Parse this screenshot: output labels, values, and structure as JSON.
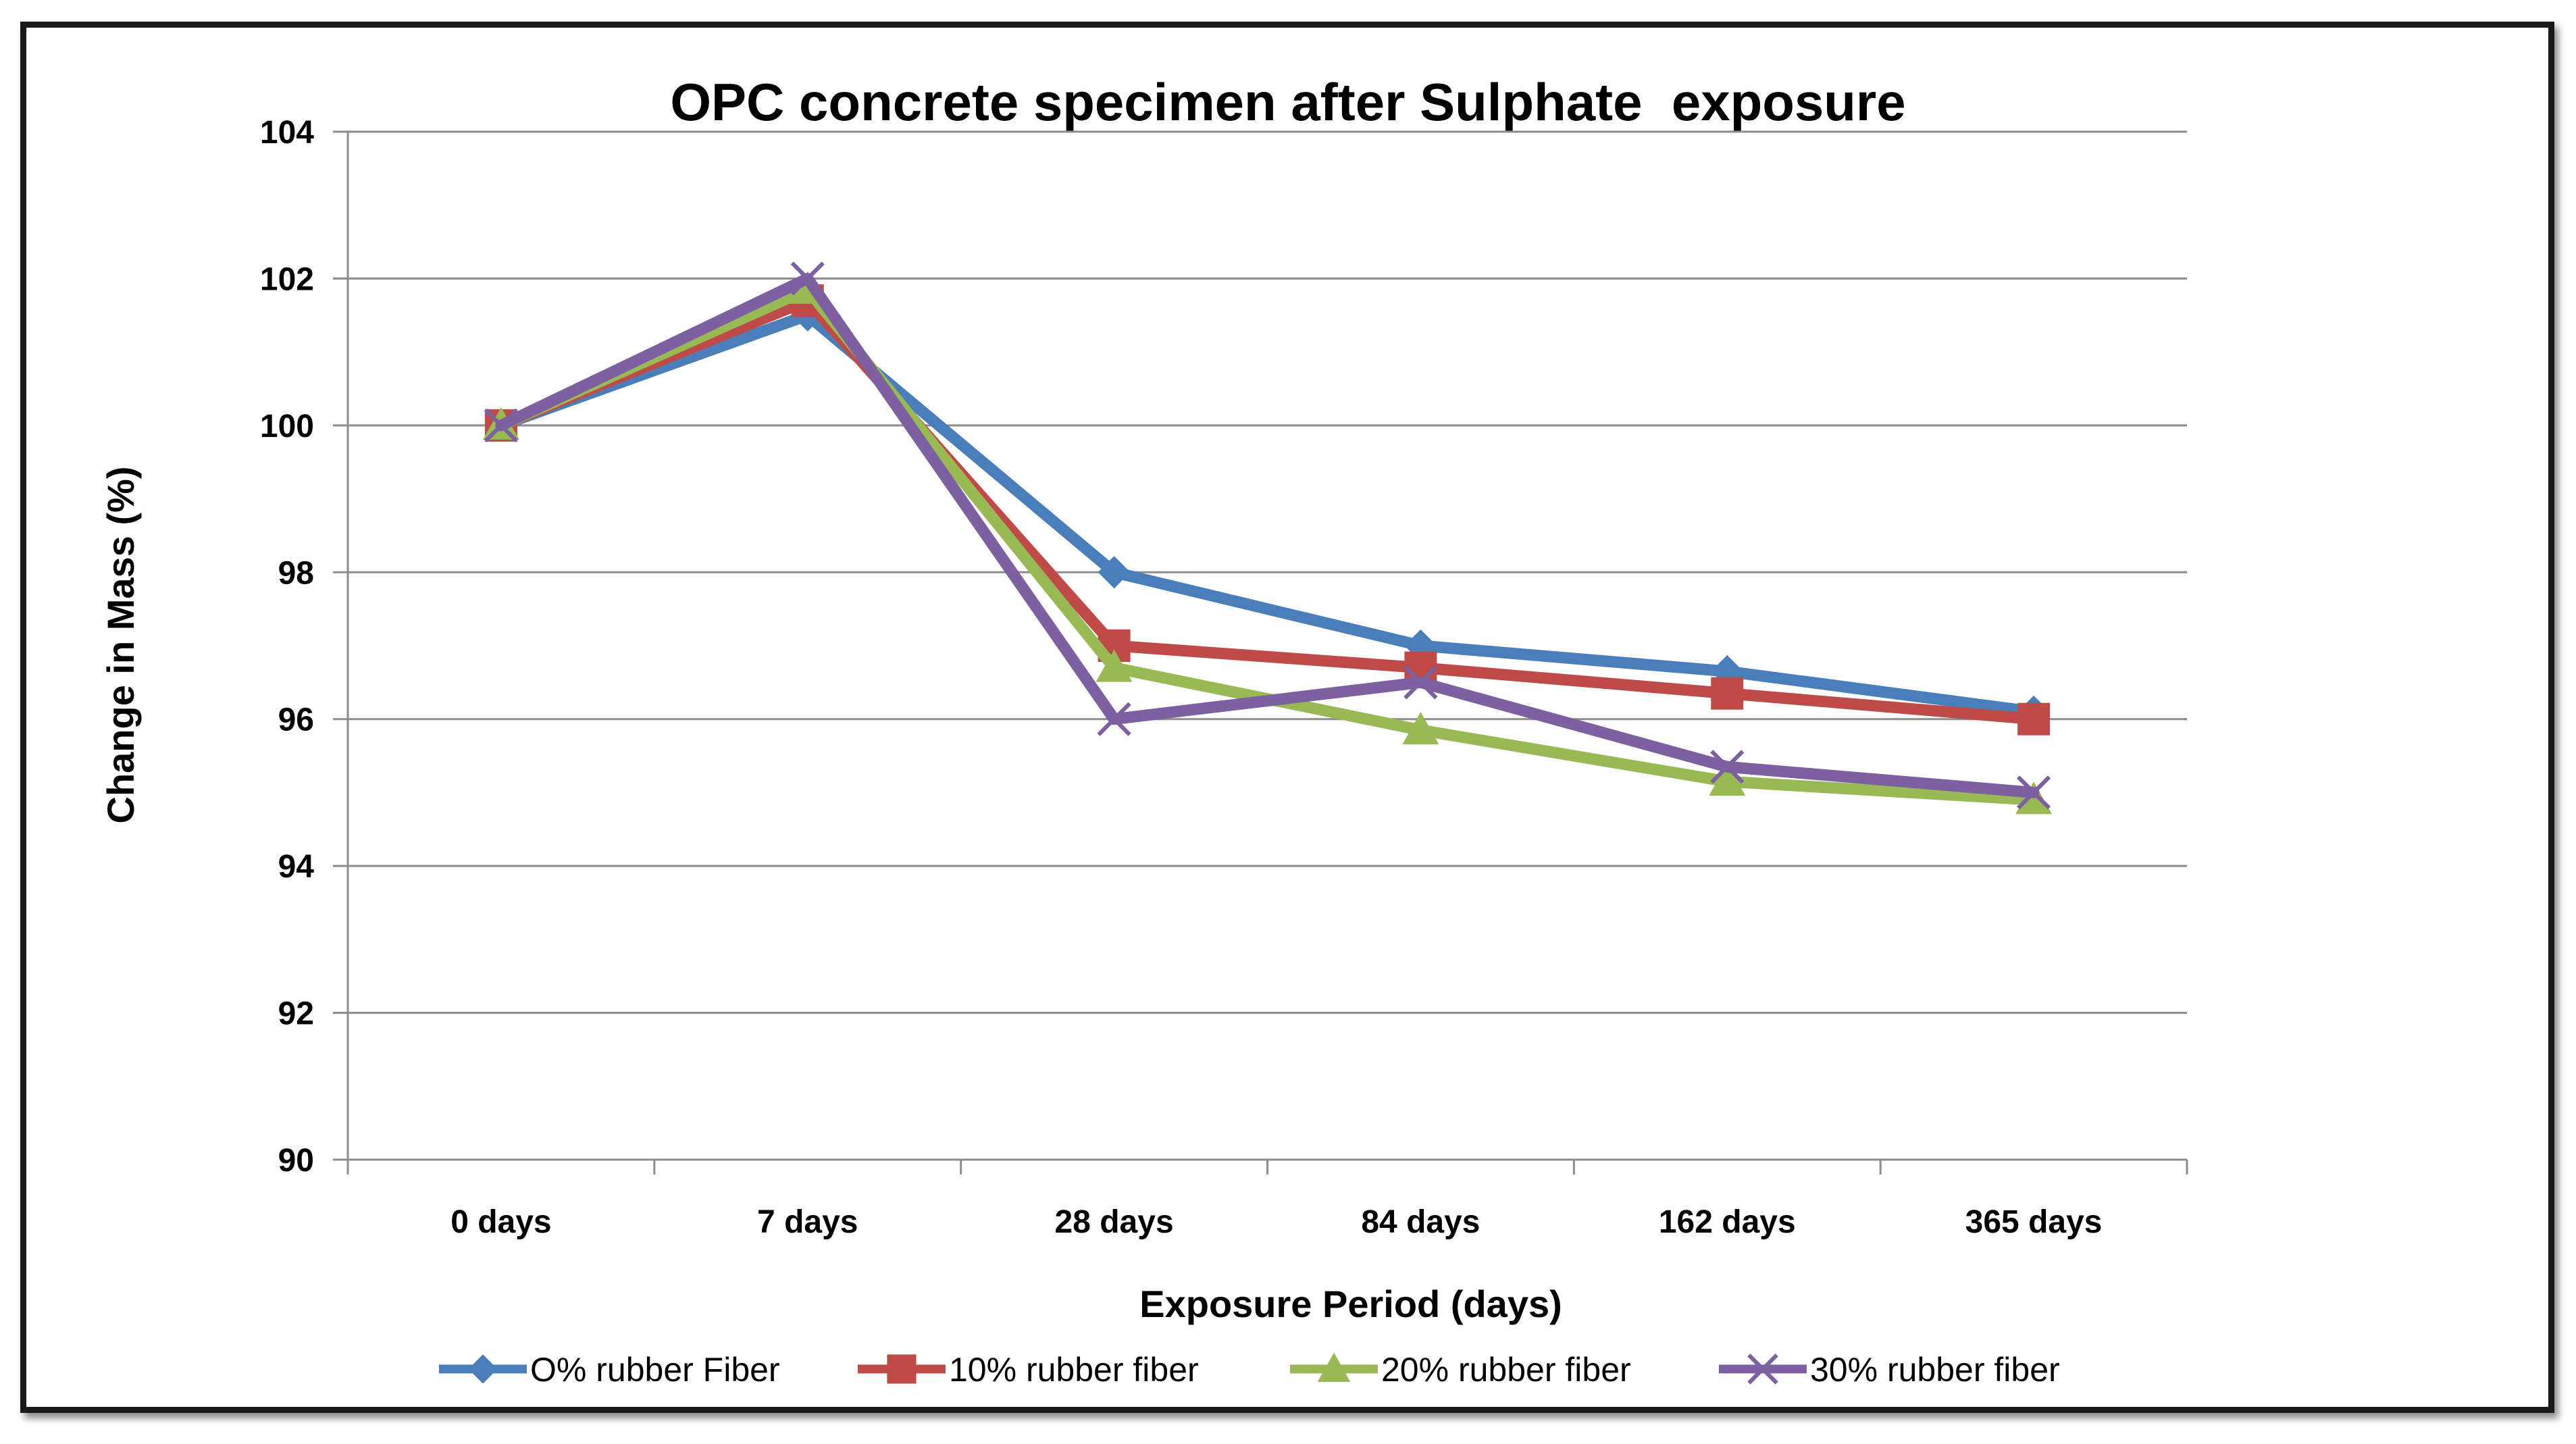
{
  "chart_data": {
    "type": "line",
    "title": "OPC concrete specimen after Sulphate  exposure",
    "xlabel": "Exposure Period (days)",
    "ylabel": "Change in Mass (%)",
    "categories": [
      "0 days",
      "7 days",
      "28 days",
      "84 days",
      "162 days",
      "365 days"
    ],
    "ylim": [
      90,
      104
    ],
    "yticks": [
      90,
      92,
      94,
      96,
      98,
      100,
      102,
      104
    ],
    "grid": true,
    "legend_position": "bottom",
    "series": [
      {
        "name": "O% rubber Fiber",
        "color": "#4a7ebb",
        "marker": "diamond",
        "values": [
          100,
          101.5,
          98.0,
          97.0,
          96.65,
          96.1
        ]
      },
      {
        "name": "10% rubber fiber",
        "color": "#be4b48",
        "marker": "square",
        "values": [
          100,
          101.7,
          97.0,
          96.7,
          96.35,
          96.0
        ]
      },
      {
        "name": "20% rubber fiber",
        "color": "#98b954",
        "marker": "triangle",
        "values": [
          100,
          101.85,
          96.7,
          95.85,
          95.15,
          94.9
        ]
      },
      {
        "name": "30% rubber fiber",
        "color": "#7d60a0",
        "marker": "x",
        "values": [
          100,
          102.0,
          96.0,
          96.5,
          95.35,
          95.0
        ]
      }
    ]
  }
}
